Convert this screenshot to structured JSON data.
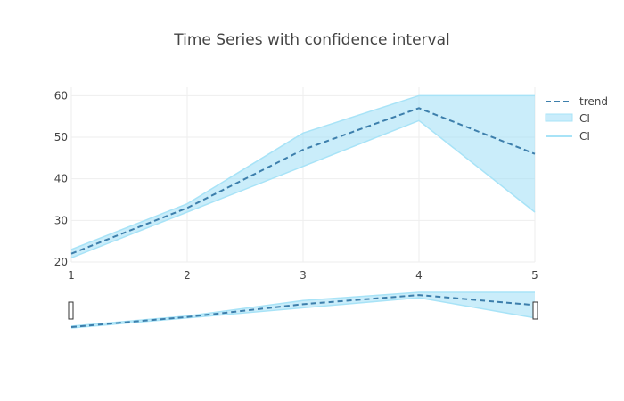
{
  "chart_data": {
    "type": "line",
    "title": "Time Series with confidence interval",
    "x": [
      1,
      2,
      3,
      4,
      5
    ],
    "xlim": [
      1,
      5
    ],
    "ylim": [
      20,
      62
    ],
    "x_ticks": [
      "1",
      "2",
      "3",
      "4",
      "5"
    ],
    "y_ticks": [
      "20",
      "30",
      "40",
      "50",
      "60"
    ],
    "grid": true,
    "legend_position": "top-right",
    "range_slider": true,
    "series": [
      {
        "name": "trend",
        "style": "dashed",
        "color": "#3d7fac",
        "values": [
          22,
          33,
          47,
          57,
          46
        ]
      },
      {
        "name": "CI",
        "role": "upper",
        "color": "#a8e3f7",
        "values": [
          23,
          34,
          51,
          60,
          60
        ]
      },
      {
        "name": "CI",
        "role": "lower",
        "color": "#a8e3f7",
        "values": [
          21,
          32,
          43,
          54,
          32
        ]
      }
    ]
  }
}
